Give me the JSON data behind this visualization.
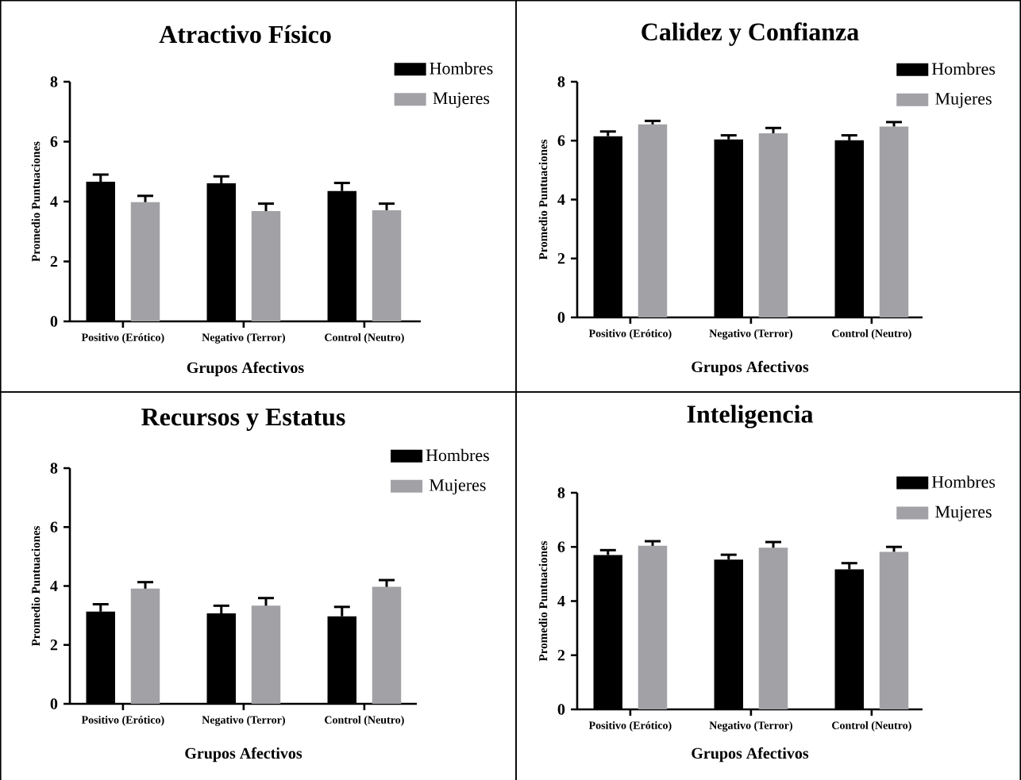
{
  "chart_data": [
    {
      "type": "bar",
      "title": "Atractivo Físico",
      "xlabel": "Grupos Afectivos",
      "ylabel": "Promedio Puntuaciones",
      "categories": [
        "Positivo (Erótico)",
        "Negativo (Terror)",
        "Control (Neutro)"
      ],
      "ylim": [
        0,
        8
      ],
      "yticks": [
        0,
        2,
        4,
        6,
        8
      ],
      "legend": "top right",
      "series": [
        {
          "name": "Hombres",
          "color": "#000000",
          "values": [
            4.66,
            4.61,
            4.35
          ],
          "errors": [
            [
              4.66,
              4.9
            ],
            [
              4.61,
              4.84
            ],
            [
              4.35,
              4.62
            ]
          ]
        },
        {
          "name": "Mujeres",
          "color": "#a2a1a6",
          "values": [
            3.98,
            3.68,
            3.71
          ],
          "errors": [
            [
              3.98,
              4.19
            ],
            [
              3.68,
              3.93
            ],
            [
              3.71,
              3.93
            ]
          ]
        }
      ]
    },
    {
      "type": "bar",
      "title": "Calidez y  Confianza",
      "xlabel": "Grupos Afectivos",
      "ylabel": "Promedio Puntuaciones",
      "categories": [
        "Positivo (Erótico)",
        "Negativo (Terror)",
        "Control (Neutro)"
      ],
      "ylim": [
        0,
        8
      ],
      "yticks": [
        0,
        2,
        4,
        6,
        8
      ],
      "legend": "top right",
      "series": [
        {
          "name": "Hombres",
          "color": "#000000",
          "values": [
            6.15,
            6.04,
            6.01
          ],
          "errors": [
            [
              6.15,
              6.31
            ],
            [
              6.04,
              6.18
            ],
            [
              6.01,
              6.18
            ]
          ]
        },
        {
          "name": "Mujeres",
          "color": "#a2a1a6",
          "values": [
            6.55,
            6.25,
            6.48
          ],
          "errors": [
            [
              6.55,
              6.67
            ],
            [
              6.25,
              6.43
            ],
            [
              6.48,
              6.63
            ]
          ]
        }
      ]
    },
    {
      "type": "bar",
      "title": "Recursos y  Estatus",
      "xlabel": "Grupos Afectivos",
      "ylabel": "Promedio Puntuaciones",
      "categories": [
        "Positivo (Erótico)",
        "Negativo (Terror)",
        "Control (Neutro)"
      ],
      "ylim": [
        0,
        8
      ],
      "yticks": [
        0,
        2,
        4,
        6,
        8
      ],
      "legend": "top right",
      "series": [
        {
          "name": "Hombres",
          "color": "#000000",
          "values": [
            3.13,
            3.07,
            2.97
          ],
          "errors": [
            [
              3.13,
              3.38
            ],
            [
              3.07,
              3.33
            ],
            [
              2.97,
              3.29
            ]
          ]
        },
        {
          "name": "Mujeres",
          "color": "#a2a1a6",
          "values": [
            3.91,
            3.33,
            3.97
          ],
          "errors": [
            [
              3.91,
              4.13
            ],
            [
              3.33,
              3.59
            ],
            [
              3.97,
              4.2
            ]
          ]
        }
      ]
    },
    {
      "type": "bar",
      "title": "Inteligencia",
      "xlabel": "Grupos Afectivos",
      "ylabel": "Promedio Puntuaciones",
      "categories": [
        "Positivo (Erótico)",
        "Negativo (Terror)",
        "Control (Neutro)"
      ],
      "ylim": [
        0,
        8
      ],
      "yticks": [
        0,
        2,
        4,
        6,
        8
      ],
      "legend": "top right",
      "series": [
        {
          "name": "Hombres",
          "color": "#000000",
          "values": [
            5.7,
            5.53,
            5.17
          ],
          "errors": [
            [
              5.7,
              5.88
            ],
            [
              5.53,
              5.71
            ],
            [
              5.17,
              5.4
            ]
          ]
        },
        {
          "name": "Mujeres",
          "color": "#a2a1a6",
          "values": [
            6.04,
            5.97,
            5.82
          ],
          "errors": [
            [
              6.04,
              6.21
            ],
            [
              5.97,
              6.18
            ],
            [
              5.82,
              6.0
            ]
          ]
        }
      ]
    }
  ]
}
